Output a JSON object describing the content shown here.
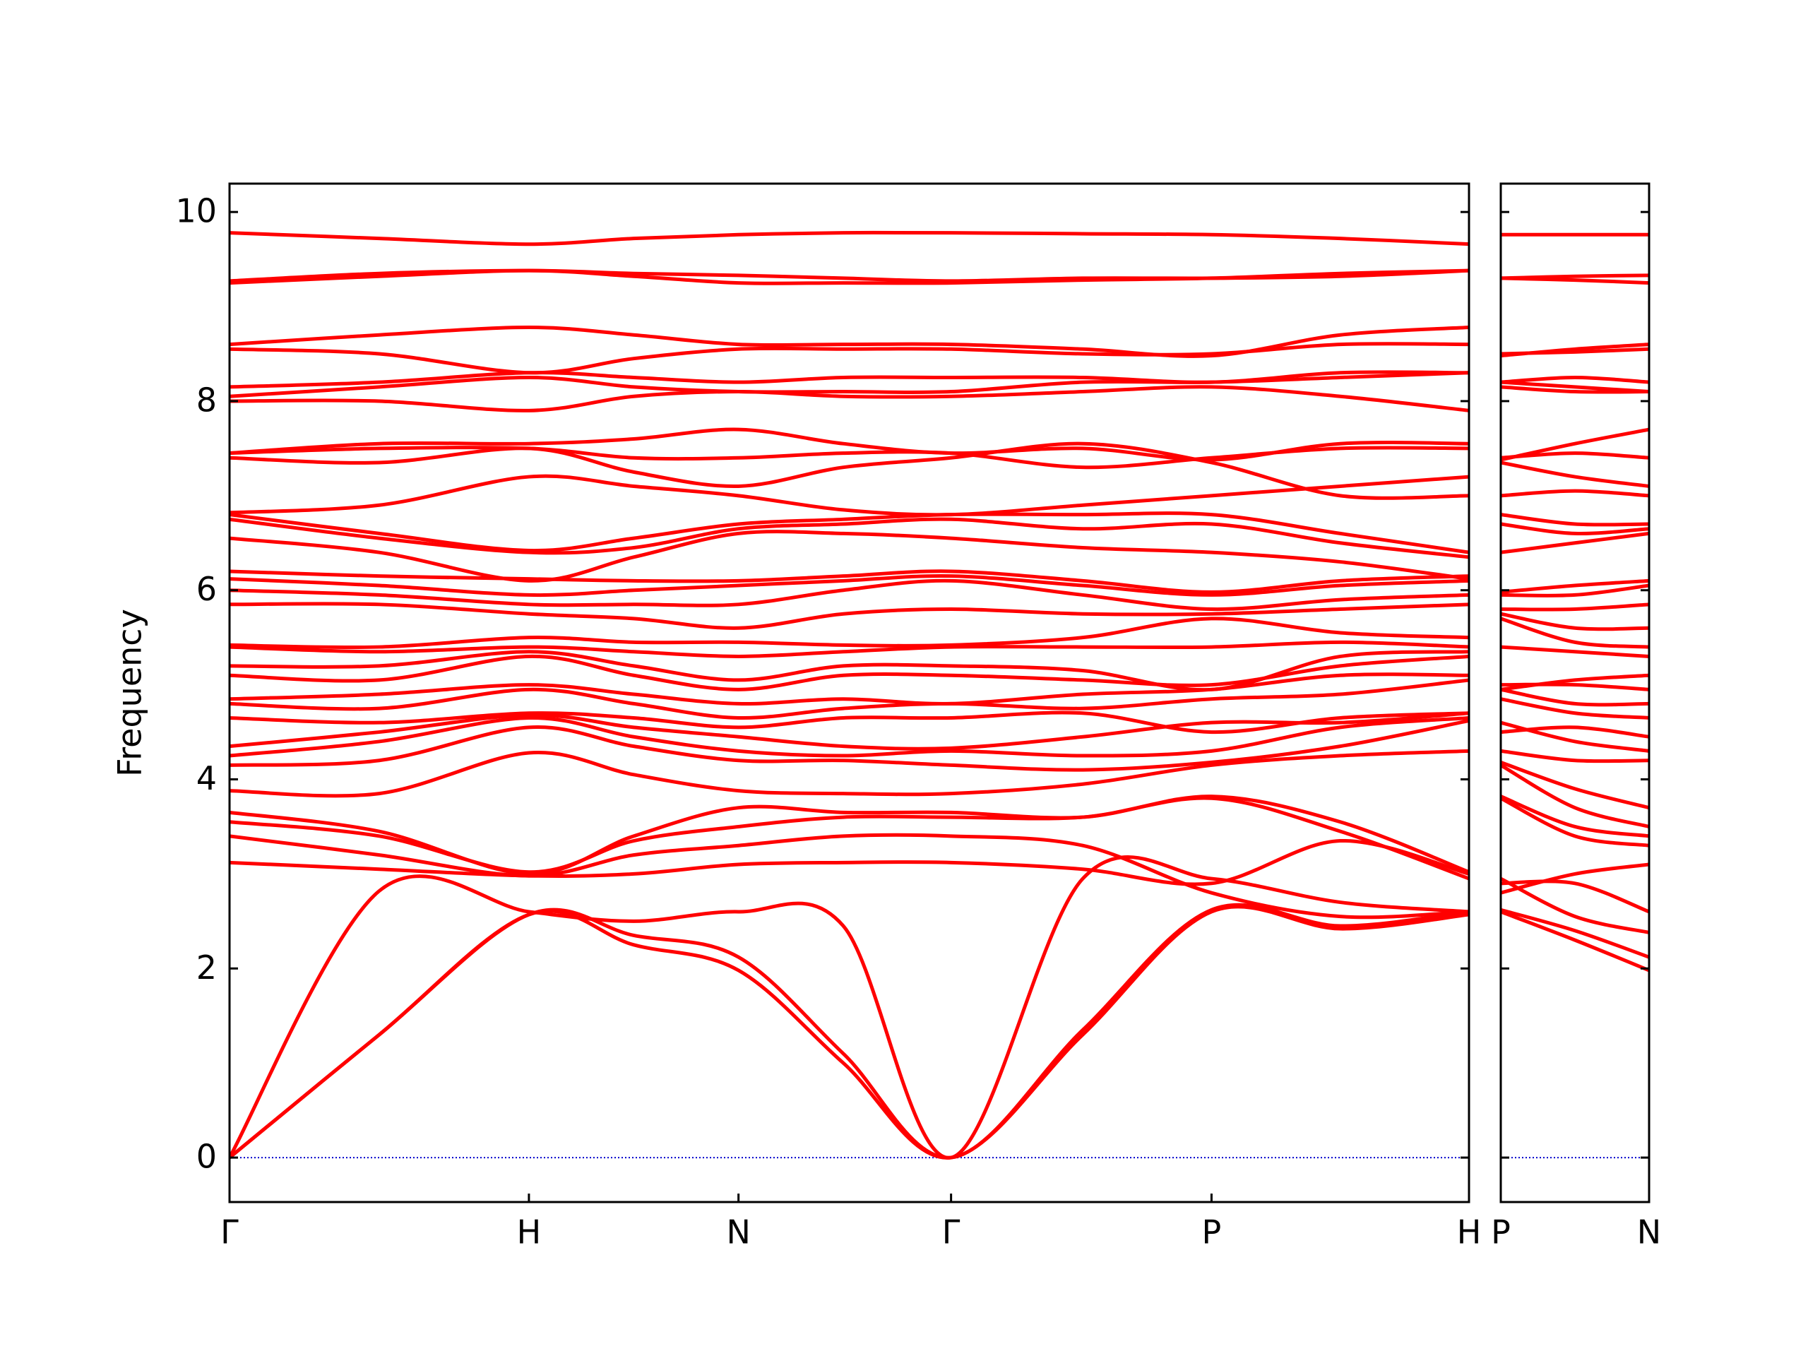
{
  "chart_data": [
    {
      "type": "line",
      "ylabel": "Frequency",
      "color": "#ff0000",
      "x": [
        0,
        0.5,
        1,
        1.35,
        1.7,
        2.05,
        2.41,
        2.85,
        3.28,
        3.71,
        4.14
      ],
      "xlim": [
        0,
        4.14
      ],
      "xticks": [
        {
          "value": 0,
          "label": "Γ"
        },
        {
          "value": 1,
          "label": "H"
        },
        {
          "value": 1.7,
          "label": "N"
        },
        {
          "value": 2.41,
          "label": "Γ"
        },
        {
          "value": 3.28,
          "label": "P"
        },
        {
          "value": 4.14,
          "label": "H"
        }
      ],
      "ylim": [
        -0.47,
        10.3
      ],
      "yticks": [
        0,
        2,
        4,
        6,
        8,
        10
      ],
      "zero_line": {
        "y": 0,
        "color": "#0000cc",
        "style": "dotted"
      },
      "series": [
        {
          "values": [
            0,
            1.3,
            2.57,
            2.25,
            1.98,
            1.0,
            0,
            1.3,
            2.6,
            2.42,
            2.57
          ]
        },
        {
          "values": [
            0,
            1.3,
            2.57,
            2.35,
            2.12,
            1.1,
            0,
            1.35,
            2.62,
            2.45,
            2.6
          ]
        },
        {
          "values": [
            0,
            2.82,
            2.6,
            2.5,
            2.6,
            2.45,
            0,
            2.95,
            2.95,
            2.7,
            2.6
          ]
        },
        {
          "values": [
            3.12,
            3.05,
            2.98,
            3.0,
            3.1,
            3.12,
            3.12,
            3.05,
            2.9,
            3.35,
            3.0
          ]
        },
        {
          "values": [
            3.4,
            3.2,
            2.98,
            3.2,
            3.3,
            3.4,
            3.4,
            3.3,
            2.8,
            2.55,
            2.6
          ]
        },
        {
          "values": [
            3.55,
            3.4,
            3.02,
            3.35,
            3.5,
            3.6,
            3.6,
            3.6,
            3.8,
            3.45,
            2.95
          ]
        },
        {
          "values": [
            3.65,
            3.45,
            3.0,
            3.4,
            3.7,
            3.65,
            3.65,
            3.6,
            3.82,
            3.55,
            3.02
          ]
        },
        {
          "values": [
            3.88,
            3.85,
            4.28,
            4.05,
            3.88,
            3.85,
            3.85,
            3.95,
            4.15,
            4.25,
            4.3
          ]
        },
        {
          "values": [
            4.15,
            4.2,
            4.55,
            4.35,
            4.2,
            4.2,
            4.15,
            4.1,
            4.18,
            4.35,
            4.62
          ]
        },
        {
          "values": [
            4.25,
            4.4,
            4.65,
            4.45,
            4.3,
            4.25,
            4.3,
            4.25,
            4.3,
            4.55,
            4.65
          ]
        },
        {
          "values": [
            4.35,
            4.5,
            4.68,
            4.55,
            4.45,
            4.35,
            4.33,
            4.45,
            4.6,
            4.6,
            4.7
          ]
        },
        {
          "values": [
            4.65,
            4.6,
            4.7,
            4.65,
            4.55,
            4.65,
            4.65,
            4.7,
            4.5,
            4.65,
            4.7
          ]
        },
        {
          "values": [
            4.8,
            4.75,
            4.95,
            4.8,
            4.65,
            4.75,
            4.8,
            4.75,
            4.85,
            4.9,
            5.05
          ]
        },
        {
          "values": [
            4.85,
            4.9,
            5.0,
            4.9,
            4.8,
            4.85,
            4.8,
            4.9,
            4.95,
            5.1,
            5.1
          ]
        },
        {
          "values": [
            5.1,
            5.05,
            5.3,
            5.1,
            4.95,
            5.1,
            5.1,
            5.05,
            5.0,
            5.2,
            5.3
          ]
        },
        {
          "values": [
            5.2,
            5.2,
            5.35,
            5.2,
            5.05,
            5.2,
            5.2,
            5.15,
            4.95,
            5.3,
            5.35
          ]
        },
        {
          "values": [
            5.4,
            5.35,
            5.4,
            5.35,
            5.3,
            5.35,
            5.4,
            5.4,
            5.4,
            5.45,
            5.4
          ]
        },
        {
          "values": [
            5.42,
            5.4,
            5.5,
            5.45,
            5.45,
            5.42,
            5.42,
            5.5,
            5.7,
            5.55,
            5.5
          ]
        },
        {
          "values": [
            5.85,
            5.85,
            5.75,
            5.7,
            5.6,
            5.75,
            5.8,
            5.75,
            5.75,
            5.8,
            5.85
          ]
        },
        {
          "values": [
            6.0,
            5.95,
            5.85,
            5.85,
            5.85,
            6.0,
            6.1,
            5.95,
            5.8,
            5.9,
            5.95
          ]
        },
        {
          "values": [
            6.12,
            6.05,
            5.95,
            6.0,
            6.05,
            6.1,
            6.15,
            6.05,
            5.95,
            6.05,
            6.1
          ]
        },
        {
          "values": [
            6.2,
            6.15,
            6.12,
            6.1,
            6.1,
            6.15,
            6.2,
            6.1,
            5.98,
            6.1,
            6.15
          ]
        },
        {
          "values": [
            6.55,
            6.4,
            6.1,
            6.35,
            6.6,
            6.6,
            6.55,
            6.45,
            6.4,
            6.3,
            6.12
          ]
        },
        {
          "values": [
            6.75,
            6.55,
            6.4,
            6.45,
            6.65,
            6.7,
            6.75,
            6.65,
            6.7,
            6.5,
            6.35
          ]
        },
        {
          "values": [
            6.8,
            6.6,
            6.42,
            6.55,
            6.7,
            6.75,
            6.8,
            6.8,
            6.8,
            6.6,
            6.4
          ]
        },
        {
          "values": [
            6.82,
            6.9,
            7.2,
            7.1,
            7.0,
            6.85,
            6.8,
            6.9,
            7.0,
            7.1,
            7.2
          ]
        },
        {
          "values": [
            7.4,
            7.35,
            7.5,
            7.25,
            7.1,
            7.3,
            7.4,
            7.55,
            7.35,
            7.0,
            7.0
          ]
        },
        {
          "values": [
            7.45,
            7.5,
            7.5,
            7.4,
            7.4,
            7.45,
            7.45,
            7.3,
            7.4,
            7.5,
            7.5
          ]
        },
        {
          "values": [
            7.45,
            7.55,
            7.55,
            7.6,
            7.7,
            7.55,
            7.45,
            7.5,
            7.38,
            7.55,
            7.55
          ]
        },
        {
          "values": [
            8.0,
            8.0,
            7.9,
            8.05,
            8.1,
            8.05,
            8.05,
            8.1,
            8.15,
            8.05,
            7.9
          ]
        },
        {
          "values": [
            8.05,
            8.15,
            8.25,
            8.15,
            8.1,
            8.1,
            8.1,
            8.2,
            8.2,
            8.25,
            8.3
          ]
        },
        {
          "values": [
            8.15,
            8.2,
            8.3,
            8.25,
            8.2,
            8.25,
            8.25,
            8.25,
            8.2,
            8.3,
            8.3
          ]
        },
        {
          "values": [
            8.55,
            8.5,
            8.3,
            8.45,
            8.55,
            8.55,
            8.55,
            8.5,
            8.5,
            8.6,
            8.6
          ]
        },
        {
          "values": [
            8.6,
            8.7,
            8.78,
            8.7,
            8.6,
            8.6,
            8.6,
            8.55,
            8.48,
            8.7,
            8.78
          ]
        },
        {
          "values": [
            9.25,
            9.32,
            9.38,
            9.32,
            9.25,
            9.25,
            9.25,
            9.28,
            9.3,
            9.35,
            9.38
          ]
        },
        {
          "values": [
            9.27,
            9.35,
            9.38,
            9.35,
            9.33,
            9.3,
            9.27,
            9.3,
            9.3,
            9.32,
            9.38
          ]
        },
        {
          "values": [
            9.78,
            9.72,
            9.66,
            9.72,
            9.76,
            9.78,
            9.78,
            9.77,
            9.76,
            9.72,
            9.66
          ]
        }
      ]
    },
    {
      "type": "line",
      "color": "#ff0000",
      "x": [
        4.14,
        4.39,
        4.64
      ],
      "xlim": [
        4.14,
        4.64
      ],
      "xticks": [
        {
          "value": 4.14,
          "label": "P"
        },
        {
          "value": 4.64,
          "label": "N"
        }
      ],
      "ylim": [
        -0.47,
        10.3
      ],
      "yticks": [
        0,
        2,
        4,
        6,
        8,
        10
      ],
      "ytick_labels": false,
      "zero_line": {
        "y": 0,
        "color": "#0000cc",
        "style": "dotted"
      },
      "series": [
        {
          "values": [
            2.6,
            2.3,
            1.98
          ]
        },
        {
          "values": [
            2.62,
            2.4,
            2.12
          ]
        },
        {
          "values": [
            2.95,
            2.55,
            2.38
          ]
        },
        {
          "values": [
            2.9,
            2.9,
            2.6
          ]
        },
        {
          "values": [
            2.8,
            3.0,
            3.1
          ]
        },
        {
          "values": [
            3.8,
            3.4,
            3.3
          ]
        },
        {
          "values": [
            3.82,
            3.5,
            3.4
          ]
        },
        {
          "values": [
            4.15,
            3.7,
            3.5
          ]
        },
        {
          "values": [
            4.18,
            3.9,
            3.7
          ]
        },
        {
          "values": [
            4.3,
            4.2,
            4.2
          ]
        },
        {
          "values": [
            4.6,
            4.4,
            4.3
          ]
        },
        {
          "values": [
            4.5,
            4.55,
            4.45
          ]
        },
        {
          "values": [
            4.85,
            4.7,
            4.65
          ]
        },
        {
          "values": [
            4.95,
            4.8,
            4.8
          ]
        },
        {
          "values": [
            5.0,
            5.0,
            4.95
          ]
        },
        {
          "values": [
            4.95,
            5.05,
            5.1
          ]
        },
        {
          "values": [
            5.4,
            5.35,
            5.3
          ]
        },
        {
          "values": [
            5.7,
            5.45,
            5.4
          ]
        },
        {
          "values": [
            5.75,
            5.6,
            5.6
          ]
        },
        {
          "values": [
            5.8,
            5.8,
            5.85
          ]
        },
        {
          "values": [
            5.95,
            5.95,
            6.05
          ]
        },
        {
          "values": [
            5.98,
            6.05,
            6.1
          ]
        },
        {
          "values": [
            6.4,
            6.5,
            6.6
          ]
        },
        {
          "values": [
            6.7,
            6.6,
            6.65
          ]
        },
        {
          "values": [
            6.8,
            6.7,
            6.7
          ]
        },
        {
          "values": [
            7.0,
            7.05,
            7.0
          ]
        },
        {
          "values": [
            7.35,
            7.2,
            7.1
          ]
        },
        {
          "values": [
            7.4,
            7.45,
            7.4
          ]
        },
        {
          "values": [
            7.38,
            7.55,
            7.7
          ]
        },
        {
          "values": [
            8.15,
            8.1,
            8.1
          ]
        },
        {
          "values": [
            8.2,
            8.15,
            8.1
          ]
        },
        {
          "values": [
            8.2,
            8.25,
            8.2
          ]
        },
        {
          "values": [
            8.5,
            8.52,
            8.55
          ]
        },
        {
          "values": [
            8.48,
            8.55,
            8.6
          ]
        },
        {
          "values": [
            9.3,
            9.28,
            9.25
          ]
        },
        {
          "values": [
            9.3,
            9.32,
            9.33
          ]
        },
        {
          "values": [
            9.76,
            9.76,
            9.76
          ]
        }
      ]
    }
  ]
}
